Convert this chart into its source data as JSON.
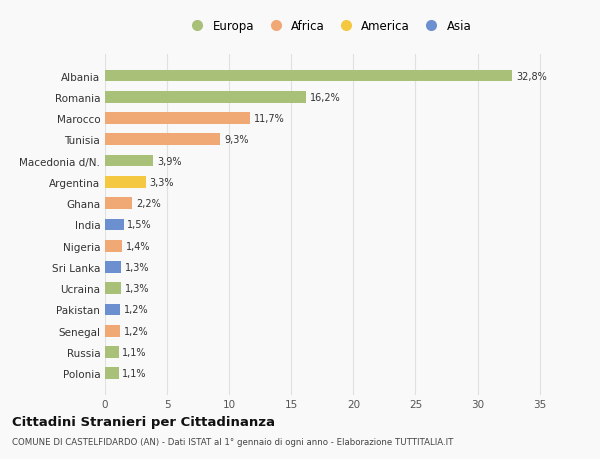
{
  "categories": [
    "Albania",
    "Romania",
    "Marocco",
    "Tunisia",
    "Macedonia d/N.",
    "Argentina",
    "Ghana",
    "India",
    "Nigeria",
    "Sri Lanka",
    "Ucraina",
    "Pakistan",
    "Senegal",
    "Russia",
    "Polonia"
  ],
  "values": [
    32.8,
    16.2,
    11.7,
    9.3,
    3.9,
    3.3,
    2.2,
    1.5,
    1.4,
    1.3,
    1.3,
    1.2,
    1.2,
    1.1,
    1.1
  ],
  "labels": [
    "32,8%",
    "16,2%",
    "11,7%",
    "9,3%",
    "3,9%",
    "3,3%",
    "2,2%",
    "1,5%",
    "1,4%",
    "1,3%",
    "1,3%",
    "1,2%",
    "1,2%",
    "1,1%",
    "1,1%"
  ],
  "colors": [
    "#a8c077",
    "#a8c077",
    "#f0a875",
    "#f0a875",
    "#a8c077",
    "#f5c842",
    "#f0a875",
    "#6b8fcf",
    "#f0a875",
    "#6b8fcf",
    "#a8c077",
    "#6b8fcf",
    "#f0a875",
    "#a8c077",
    "#a8c077"
  ],
  "legend": [
    {
      "label": "Europa",
      "color": "#a8c077"
    },
    {
      "label": "Africa",
      "color": "#f0a875"
    },
    {
      "label": "America",
      "color": "#f5c842"
    },
    {
      "label": "Asia",
      "color": "#6b8fcf"
    }
  ],
  "title": "Cittadini Stranieri per Cittadinanza",
  "subtitle": "COMUNE DI CASTELFIDARDO (AN) - Dati ISTAT al 1° gennaio di ogni anno - Elaborazione TUTTITALIA.IT",
  "xlim": [
    0,
    36
  ],
  "xticks": [
    0,
    5,
    10,
    15,
    20,
    25,
    30,
    35
  ],
  "bg_color": "#f9f9f9",
  "grid_color": "#e0e0e0",
  "bar_height": 0.55
}
